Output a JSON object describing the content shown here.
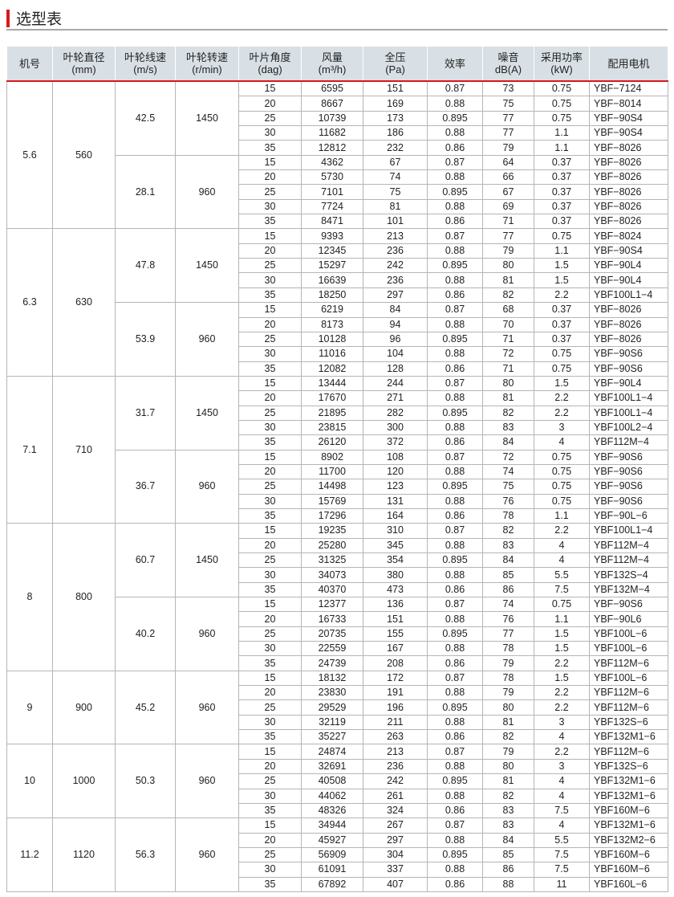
{
  "title": "选型表",
  "accent_color": "#d7191c",
  "header": [
    [
      "机号"
    ],
    [
      "叶轮直径",
      "(mm)"
    ],
    [
      "叶轮线速",
      "(m/s)"
    ],
    [
      "叶轮转速",
      "(r/min)"
    ],
    [
      "叶片角度",
      "(dag)"
    ],
    [
      "风量",
      "(m³/h)"
    ],
    [
      "全压",
      "(Pa)"
    ],
    [
      "效率"
    ],
    [
      "噪音",
      "dB(A)"
    ],
    [
      "采用功率",
      "(kW)"
    ],
    [
      "配用电机"
    ]
  ],
  "models": [
    {
      "no": "5.6",
      "diameter": "560",
      "groups": [
        {
          "speed": "42.5",
          "rpm": "1450",
          "rows": [
            [
              "15",
              "6595",
              "151",
              "0.87",
              "73",
              "0.75",
              "YBF−7124"
            ],
            [
              "20",
              "8667",
              "169",
              "0.88",
              "75",
              "0.75",
              "YBF−8014"
            ],
            [
              "25",
              "10739",
              "173",
              "0.895",
              "77",
              "0.75",
              "YBF−90S4"
            ],
            [
              "30",
              "11682",
              "186",
              "0.88",
              "77",
              "1.1",
              "YBF−90S4"
            ],
            [
              "35",
              "12812",
              "232",
              "0.86",
              "79",
              "1.1",
              "YBF−8026"
            ]
          ]
        },
        {
          "speed": "28.1",
          "rpm": "960",
          "rows": [
            [
              "15",
              "4362",
              "67",
              "0.87",
              "64",
              "0.37",
              "YBF−8026"
            ],
            [
              "20",
              "5730",
              "74",
              "0.88",
              "66",
              "0.37",
              "YBF−8026"
            ],
            [
              "25",
              "7101",
              "75",
              "0.895",
              "67",
              "0.37",
              "YBF−8026"
            ],
            [
              "30",
              "7724",
              "81",
              "0.88",
              "69",
              "0.37",
              "YBF−8026"
            ],
            [
              "35",
              "8471",
              "101",
              "0.86",
              "71",
              "0.37",
              "YBF−8026"
            ]
          ]
        }
      ]
    },
    {
      "no": "6.3",
      "diameter": "630",
      "groups": [
        {
          "speed": "47.8",
          "rpm": "1450",
          "rows": [
            [
              "15",
              "9393",
              "213",
              "0.87",
              "77",
              "0.75",
              "YBF−8024"
            ],
            [
              "20",
              "12345",
              "236",
              "0.88",
              "79",
              "1.1",
              "YBF−90S4"
            ],
            [
              "25",
              "15297",
              "242",
              "0.895",
              "80",
              "1.5",
              "YBF−90L4"
            ],
            [
              "30",
              "16639",
              "236",
              "0.88",
              "81",
              "1.5",
              "YBF−90L4"
            ],
            [
              "35",
              "18250",
              "297",
              "0.86",
              "82",
              "2.2",
              "YBF100L1−4"
            ]
          ]
        },
        {
          "speed": "53.9",
          "rpm": "960",
          "rows": [
            [
              "15",
              "6219",
              "84",
              "0.87",
              "68",
              "0.37",
              "YBF−8026"
            ],
            [
              "20",
              "8173",
              "94",
              "0.88",
              "70",
              "0.37",
              "YBF−8026"
            ],
            [
              "25",
              "10128",
              "96",
              "0.895",
              "71",
              "0.37",
              "YBF−8026"
            ],
            [
              "30",
              "11016",
              "104",
              "0.88",
              "72",
              "0.75",
              "YBF−90S6"
            ],
            [
              "35",
              "12082",
              "128",
              "0.86",
              "71",
              "0.75",
              "YBF−90S6"
            ]
          ]
        }
      ]
    },
    {
      "no": "7.1",
      "diameter": "710",
      "groups": [
        {
          "speed": "31.7",
          "rpm": "1450",
          "rows": [
            [
              "15",
              "13444",
              "244",
              "0.87",
              "80",
              "1.5",
              "YBF−90L4"
            ],
            [
              "20",
              "17670",
              "271",
              "0.88",
              "81",
              "2.2",
              "YBF100L1−4"
            ],
            [
              "25",
              "21895",
              "282",
              "0.895",
              "82",
              "2.2",
              "YBF100L1−4"
            ],
            [
              "30",
              "23815",
              "300",
              "0.88",
              "83",
              "3",
              "YBF100L2−4"
            ],
            [
              "35",
              "26120",
              "372",
              "0.86",
              "84",
              "4",
              "YBF112M−4"
            ]
          ]
        },
        {
          "speed": "36.7",
          "rpm": "960",
          "rows": [
            [
              "15",
              "8902",
              "108",
              "0.87",
              "72",
              "0.75",
              "YBF−90S6"
            ],
            [
              "20",
              "11700",
              "120",
              "0.88",
              "74",
              "0.75",
              "YBF−90S6"
            ],
            [
              "25",
              "14498",
              "123",
              "0.895",
              "75",
              "0.75",
              "YBF−90S6"
            ],
            [
              "30",
              "15769",
              "131",
              "0.88",
              "76",
              "0.75",
              "YBF−90S6"
            ],
            [
              "35",
              "17296",
              "164",
              "0.86",
              "78",
              "1.1",
              "YBF−90L−6"
            ]
          ]
        }
      ]
    },
    {
      "no": "8",
      "diameter": "800",
      "groups": [
        {
          "speed": "60.7",
          "rpm": "1450",
          "rows": [
            [
              "15",
              "19235",
              "310",
              "0.87",
              "82",
              "2.2",
              "YBF100L1−4"
            ],
            [
              "20",
              "25280",
              "345",
              "0.88",
              "83",
              "4",
              "YBF112M−4"
            ],
            [
              "25",
              "31325",
              "354",
              "0.895",
              "84",
              "4",
              "YBF112M−4"
            ],
            [
              "30",
              "34073",
              "380",
              "0.88",
              "85",
              "5.5",
              "YBF132S−4"
            ],
            [
              "35",
              "40370",
              "473",
              "0.86",
              "86",
              "7.5",
              "YBF132M−4"
            ]
          ]
        },
        {
          "speed": "40.2",
          "rpm": "960",
          "rows": [
            [
              "15",
              "12377",
              "136",
              "0.87",
              "74",
              "0.75",
              "YBF−90S6"
            ],
            [
              "20",
              "16733",
              "151",
              "0.88",
              "76",
              "1.1",
              "YBF−90L6"
            ],
            [
              "25",
              "20735",
              "155",
              "0.895",
              "77",
              "1.5",
              "YBF100L−6"
            ],
            [
              "30",
              "22559",
              "167",
              "0.88",
              "78",
              "1.5",
              "YBF100L−6"
            ],
            [
              "35",
              "24739",
              "208",
              "0.86",
              "79",
              "2.2",
              "YBF112M−6"
            ]
          ]
        }
      ]
    },
    {
      "no": "9",
      "diameter": "900",
      "groups": [
        {
          "speed": "45.2",
          "rpm": "960",
          "rows": [
            [
              "15",
              "18132",
              "172",
              "0.87",
              "78",
              "1.5",
              "YBF100L−6"
            ],
            [
              "20",
              "23830",
              "191",
              "0.88",
              "79",
              "2.2",
              "YBF112M−6"
            ],
            [
              "25",
              "29529",
              "196",
              "0.895",
              "80",
              "2.2",
              "YBF112M−6"
            ],
            [
              "30",
              "32119",
              "211",
              "0.88",
              "81",
              "3",
              "YBF132S−6"
            ],
            [
              "35",
              "35227",
              "263",
              "0.86",
              "82",
              "4",
              "YBF132M1−6"
            ]
          ]
        }
      ]
    },
    {
      "no": "10",
      "diameter": "1000",
      "groups": [
        {
          "speed": "50.3",
          "rpm": "960",
          "rows": [
            [
              "15",
              "24874",
              "213",
              "0.87",
              "79",
              "2.2",
              "YBF112M−6"
            ],
            [
              "20",
              "32691",
              "236",
              "0.88",
              "80",
              "3",
              "YBF132S−6"
            ],
            [
              "25",
              "40508",
              "242",
              "0.895",
              "81",
              "4",
              "YBF132M1−6"
            ],
            [
              "30",
              "44062",
              "261",
              "0.88",
              "82",
              "4",
              "YBF132M1−6"
            ],
            [
              "35",
              "48326",
              "324",
              "0.86",
              "83",
              "7.5",
              "YBF160M−6"
            ]
          ]
        }
      ]
    },
    {
      "no": "11.2",
      "diameter": "1120",
      "groups": [
        {
          "speed": "56.3",
          "rpm": "960",
          "rows": [
            [
              "15",
              "34944",
              "267",
              "0.87",
              "83",
              "4",
              "YBF132M1−6"
            ],
            [
              "20",
              "45927",
              "297",
              "0.88",
              "84",
              "5.5",
              "YBF132M2−6"
            ],
            [
              "25",
              "56909",
              "304",
              "0.895",
              "85",
              "7.5",
              "YBF160M−6"
            ],
            [
              "30",
              "61091",
              "337",
              "0.88",
              "86",
              "7.5",
              "YBF160M−6"
            ],
            [
              "35",
              "67892",
              "407",
              "0.86",
              "88",
              "11",
              "YBF160L−6"
            ]
          ]
        }
      ]
    }
  ]
}
